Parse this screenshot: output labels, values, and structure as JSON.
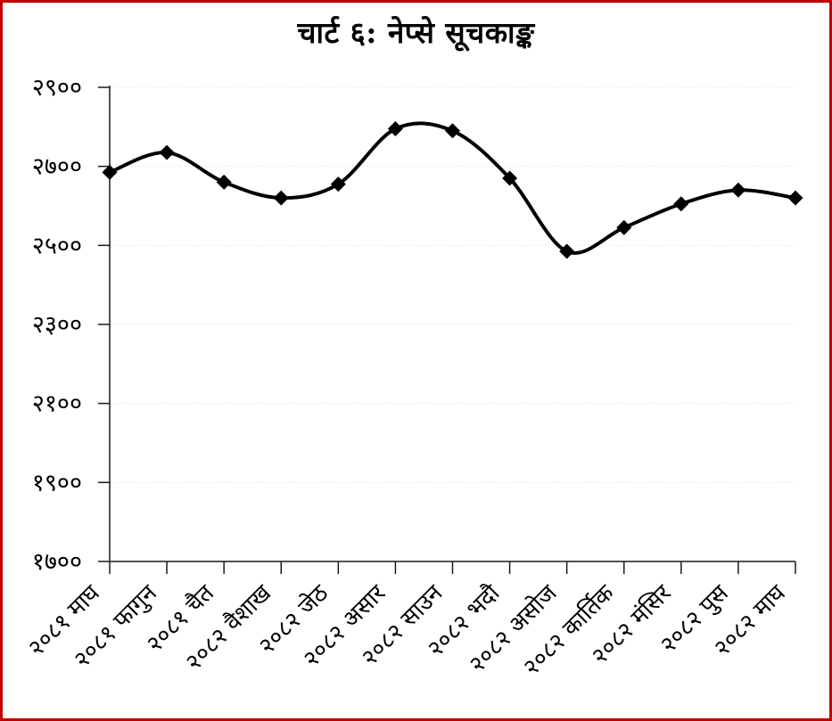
{
  "frame": {
    "border_color": "#C00000",
    "background_color": "#FFFFFF"
  },
  "chart": {
    "title": "चार्ट ६: नेप्से सूचकाङ्क"
  },
  "chart_data": {
    "type": "line",
    "title": "चार्ट ६: नेप्से सूचकाङ्क",
    "smooth": true,
    "marker": "diamond",
    "line_color": "#000000",
    "marker_color": "#000000",
    "grid": "horizontal-dotted",
    "grid_color": "#D9D9D9",
    "axis_color": "#1A1A1A",
    "legend": "none",
    "categories": [
      "२०८१ माघ",
      "२०८१ फागुन",
      "२०८१ चैत",
      "२०८२ वैशाख",
      "२०८२ जेठ",
      "२०८२ असार",
      "२०८२ साउन",
      "२०८२ भदौ",
      "२०८२ असोज",
      "२०८२ कार्तिक",
      "२०८२ मंसिर",
      "२०८२ पुस",
      "२०८२ माघ"
    ],
    "values": [
      2685,
      2735,
      2660,
      2620,
      2655,
      2795,
      2790,
      2670,
      2485,
      2545,
      2605,
      2640,
      2620
    ],
    "ylim": [
      1700,
      2900
    ],
    "ytick_step": 200,
    "yticks": [
      {
        "value": 2900,
        "label": "२९००"
      },
      {
        "value": 2700,
        "label": "२७००"
      },
      {
        "value": 2500,
        "label": "२५००"
      },
      {
        "value": 2300,
        "label": "२३००"
      },
      {
        "value": 2100,
        "label": "२१००"
      },
      {
        "value": 1900,
        "label": "१९००"
      },
      {
        "value": 1700,
        "label": "१७००"
      }
    ]
  }
}
